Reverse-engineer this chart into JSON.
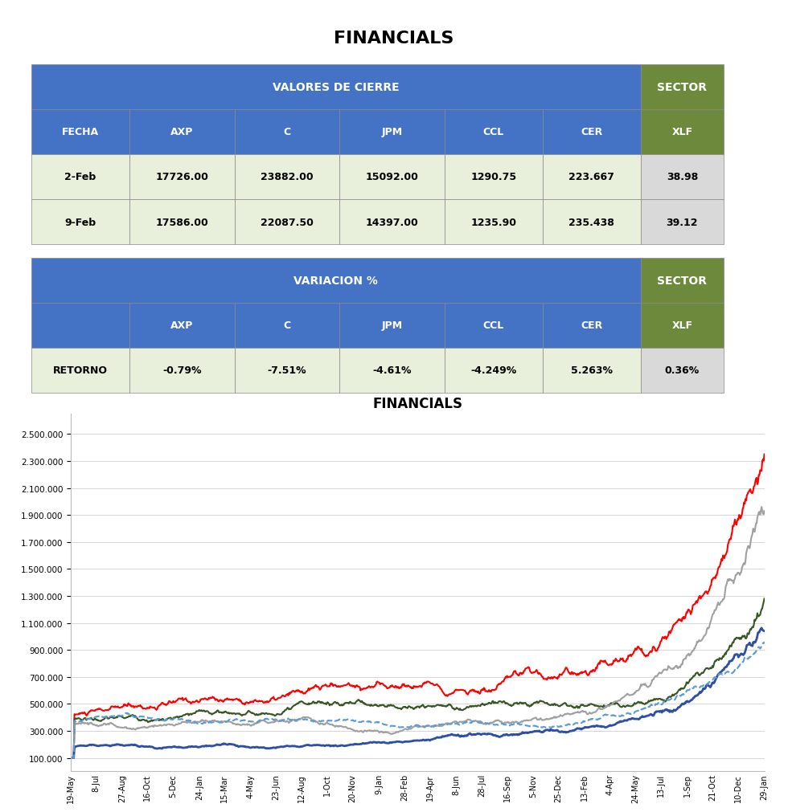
{
  "title": "FINANCIALS",
  "table1_header_main": "VALORES DE CIERRE",
  "table1_header_sector": "SECTOR",
  "table1_col_sector": "XLF",
  "table1_columns": [
    "FECHA",
    "AXP",
    "C",
    "JPM",
    "CCL",
    "CER"
  ],
  "table1_rows": [
    [
      "2-Feb",
      "17726.00",
      "23882.00",
      "15092.00",
      "1290.75",
      "223.667",
      "38.98"
    ],
    [
      "9-Feb",
      "17586.00",
      "22087.50",
      "14397.00",
      "1235.90",
      "235.438",
      "39.12"
    ]
  ],
  "table2_header_main": "VARIACION %",
  "table2_header_sector": "SECTOR",
  "table2_col_sector": "XLF",
  "table2_rows": [
    [
      "RETORNO",
      "-0.79%",
      "-7.51%",
      "-4.61%",
      "-4.249%",
      "5.263%",
      "0.36%"
    ]
  ],
  "chart_title": "FINANCIALS",
  "blue_header_color": "#4472C4",
  "green_header_color": "#6D8A3C",
  "light_green_row_color": "#E8F0DC",
  "light_gray_row_color": "#D9D9D9",
  "white_color": "#FFFFFF",
  "chart_bg": "#FFFFFF",
  "x_labels": [
    "19-May",
    "8-Jul",
    "27-Aug",
    "16-Oct",
    "5-Dec",
    "24-Jan",
    "15-Mar",
    "4-May",
    "23-Jun",
    "12-Aug",
    "1-Oct",
    "20-Nov",
    "9-Jan",
    "28-Feb",
    "19-Apr",
    "8-Jun",
    "28-Jul",
    "16-Sep",
    "5-Nov",
    "25-Dec",
    "13-Feb",
    "4-Apr",
    "24-May",
    "13-Jul",
    "1-Sep",
    "21-Oct",
    "10-Dec",
    "29-Jan"
  ],
  "y_ticks": [
    100000,
    300000,
    500000,
    700000,
    900000,
    1100000,
    1300000,
    1500000,
    1700000,
    1900000,
    2100000,
    2300000,
    2500000
  ],
  "line_colors": {
    "AXP": "#FF0000",
    "C": "#375623",
    "JPM": "#A0A0A0",
    "CCL": "#2E4FA3",
    "CER": "#5B9BD5"
  },
  "line_widths": {
    "AXP": 1.5,
    "C": 1.5,
    "JPM": 1.5,
    "CCL": 2.0,
    "CER": 1.5
  }
}
